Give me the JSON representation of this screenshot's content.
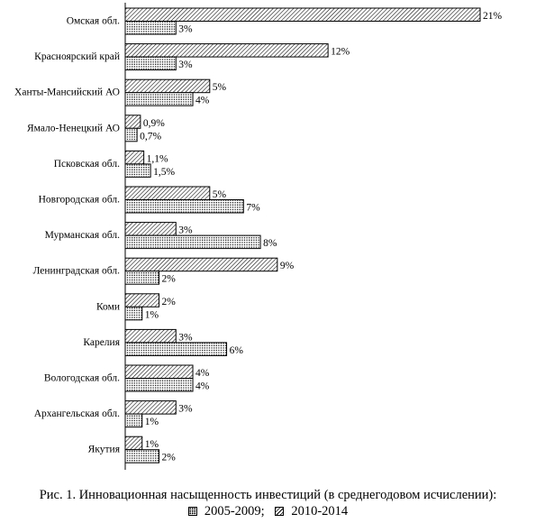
{
  "chart_data": {
    "type": "bar",
    "orientation": "horizontal",
    "categories": [
      "Омская обл.",
      "Красноярский край",
      "Ханты-Мансийский АО",
      "Ямало-Ненецкий АО",
      "Псковская обл.",
      "Новгородская обл.",
      "Мурманская обл.",
      "Ленинградская обл.",
      "Коми",
      "Карелия",
      "Вологодская обл.",
      "Архангельская обл.",
      "Якутия"
    ],
    "series": [
      {
        "name": "2010-2014",
        "pattern": "hatch",
        "values": [
          21,
          12,
          5,
          0.9,
          1.1,
          5,
          3,
          9,
          2,
          3,
          4,
          3,
          1
        ],
        "labels": [
          "21%",
          "12%",
          "5%",
          "0,9%",
          "1,1%",
          "5%",
          "3%",
          "9%",
          "2%",
          "3%",
          "4%",
          "3%",
          "1%"
        ]
      },
      {
        "name": "2005-2009",
        "pattern": "dots",
        "values": [
          3,
          3,
          4,
          0.7,
          1.5,
          7,
          8,
          2,
          1,
          6,
          4,
          1,
          2
        ],
        "labels": [
          "3%",
          "3%",
          "4%",
          "0,7%",
          "1,5%",
          "7%",
          "8%",
          "2%",
          "1%",
          "6%",
          "4%",
          "1%",
          "2%"
        ]
      }
    ],
    "xlim": [
      0,
      21
    ],
    "title": "Рис. 1. Инновационная насыщенность инвестиций (в среднегодовом исчислении):",
    "legend": [
      "2005-2009;",
      "2010-2014"
    ],
    "legend_position": "bottom",
    "grid": false,
    "colors": {
      "bar_fill": "#ffffff",
      "pattern": "#000000",
      "axis": "#000000"
    }
  }
}
